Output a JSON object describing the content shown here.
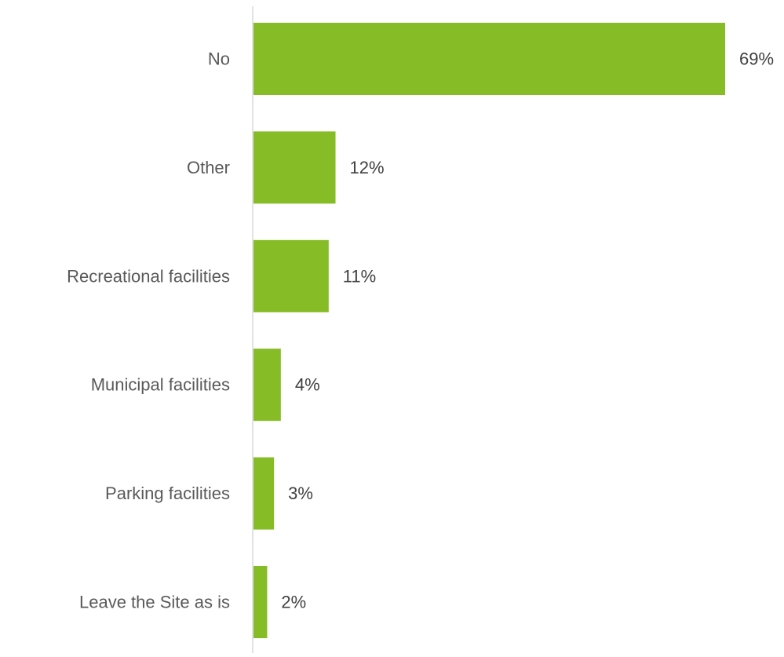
{
  "chart_data": {
    "type": "bar",
    "orientation": "horizontal",
    "categories": [
      "No",
      "Other",
      "Recreational facilities",
      "Municipal facilities",
      "Parking facilities",
      "Leave the Site as is"
    ],
    "values": [
      69,
      12,
      11,
      4,
      3,
      2
    ],
    "data_labels": [
      "69%",
      "12%",
      "11%",
      "4%",
      "3%",
      "2%"
    ],
    "unit": "%",
    "xlim": [
      0,
      69
    ],
    "grid": false,
    "legend": "none",
    "colors": {
      "bar": "#86bc25",
      "axis_line": "#d9d9d9",
      "category_text": "#595959",
      "value_text": "#404040"
    }
  }
}
